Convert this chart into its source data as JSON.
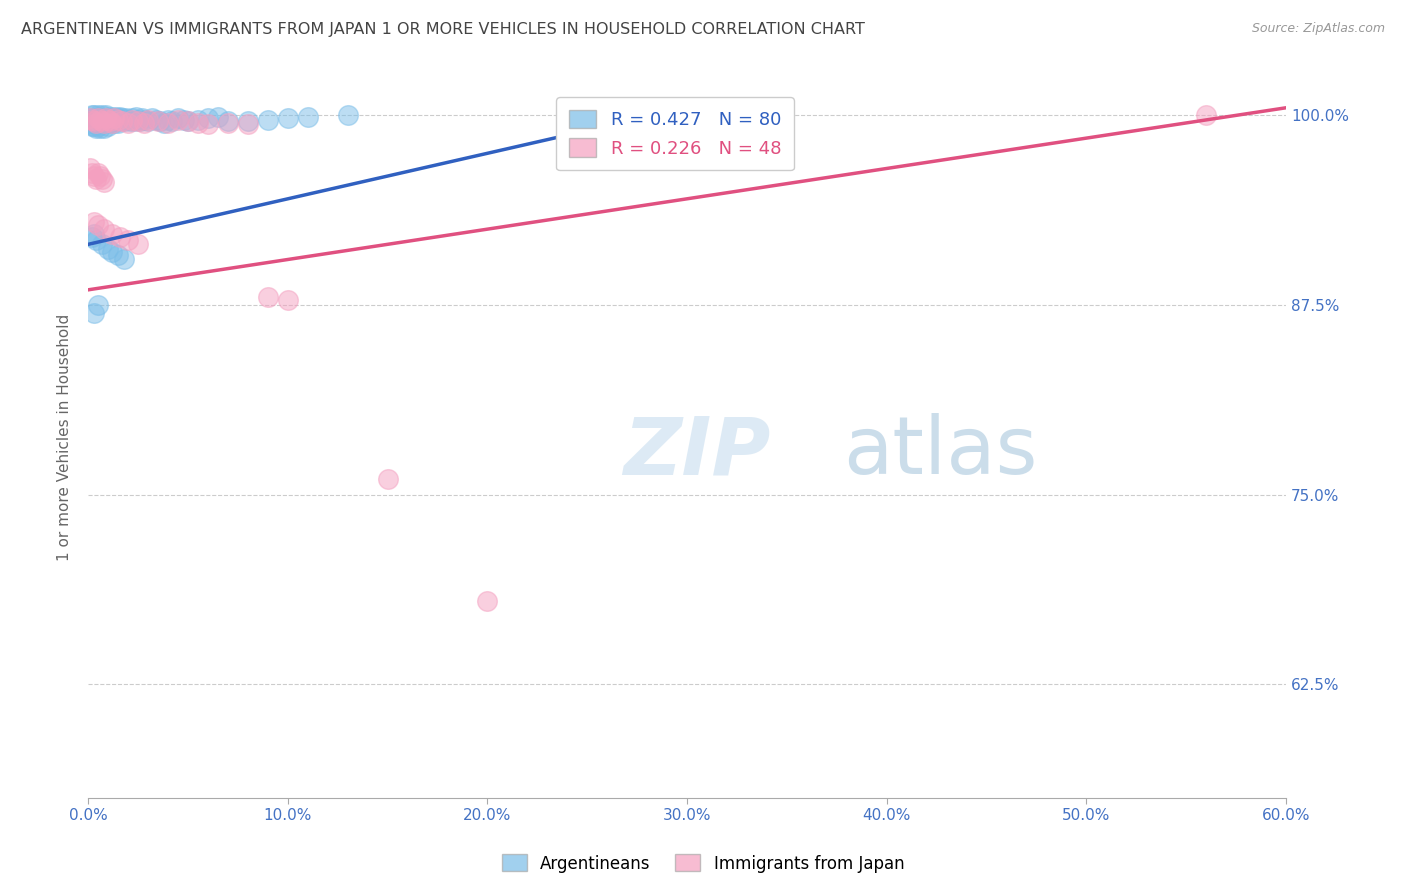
{
  "title": "ARGENTINEAN VS IMMIGRANTS FROM JAPAN 1 OR MORE VEHICLES IN HOUSEHOLD CORRELATION CHART",
  "source": "Source: ZipAtlas.com",
  "ylabel": "1 or more Vehicles in Household",
  "xmin": 0.0,
  "xmax": 0.6,
  "ymin": 0.55,
  "ymax": 1.025,
  "xticks": [
    0.0,
    0.1,
    0.2,
    0.3,
    0.4,
    0.5,
    0.6
  ],
  "xticklabels": [
    "0.0%",
    "10.0%",
    "20.0%",
    "30.0%",
    "40.0%",
    "50.0%",
    "60.0%"
  ],
  "yticks": [
    0.625,
    0.75,
    0.875,
    1.0
  ],
  "yticklabels": [
    "62.5%",
    "75.0%",
    "87.5%",
    "100.0%"
  ],
  "legend_labels": [
    "Argentineans",
    "Immigrants from Japan"
  ],
  "R_blue": 0.427,
  "N_blue": 80,
  "R_pink": 0.226,
  "N_pink": 48,
  "blue_color": "#7abde8",
  "pink_color": "#f4a0c0",
  "blue_line_color": "#3060c0",
  "pink_line_color": "#e05080",
  "title_color": "#444444",
  "axis_label_color": "#666666",
  "tick_color": "#4472c4",
  "blue_line_x0": 0.0,
  "blue_line_y0": 0.915,
  "blue_line_x1": 0.3,
  "blue_line_y1": 1.005,
  "pink_line_x0": 0.0,
  "pink_line_y0": 0.885,
  "pink_line_x1": 0.6,
  "pink_line_y1": 1.005,
  "blue_x": [
    0.001,
    0.001,
    0.002,
    0.002,
    0.002,
    0.003,
    0.003,
    0.003,
    0.004,
    0.004,
    0.004,
    0.005,
    0.005,
    0.005,
    0.006,
    0.006,
    0.006,
    0.007,
    0.007,
    0.008,
    0.008,
    0.008,
    0.009,
    0.009,
    0.01,
    0.01,
    0.01,
    0.011,
    0.011,
    0.012,
    0.012,
    0.013,
    0.013,
    0.014,
    0.014,
    0.015,
    0.015,
    0.016,
    0.016,
    0.017,
    0.018,
    0.019,
    0.02,
    0.021,
    0.022,
    0.023,
    0.024,
    0.025,
    0.026,
    0.027,
    0.028,
    0.03,
    0.032,
    0.034,
    0.036,
    0.038,
    0.04,
    0.042,
    0.045,
    0.048,
    0.05,
    0.055,
    0.06,
    0.065,
    0.07,
    0.08,
    0.09,
    0.1,
    0.11,
    0.13,
    0.002,
    0.003,
    0.004,
    0.007,
    0.01,
    0.012,
    0.015,
    0.018,
    0.003,
    0.005
  ],
  "blue_y": [
    0.998,
    0.995,
    1.0,
    0.997,
    0.993,
    1.0,
    0.997,
    0.993,
    0.998,
    0.995,
    0.992,
    1.0,
    0.997,
    0.993,
    0.998,
    0.995,
    0.992,
    1.0,
    0.997,
    0.998,
    0.995,
    0.992,
    1.0,
    0.996,
    0.999,
    0.996,
    0.993,
    0.998,
    0.995,
    0.999,
    0.996,
    0.998,
    0.995,
    0.999,
    0.996,
    0.998,
    0.995,
    0.999,
    0.997,
    0.998,
    0.996,
    0.998,
    0.997,
    0.996,
    0.998,
    0.996,
    0.999,
    0.997,
    0.996,
    0.998,
    0.997,
    0.996,
    0.998,
    0.997,
    0.996,
    0.995,
    0.997,
    0.996,
    0.998,
    0.997,
    0.996,
    0.997,
    0.998,
    0.999,
    0.996,
    0.996,
    0.997,
    0.998,
    0.999,
    1.0,
    0.92,
    0.922,
    0.918,
    0.915,
    0.912,
    0.91,
    0.908,
    0.905,
    0.87,
    0.875
  ],
  "pink_x": [
    0.001,
    0.002,
    0.003,
    0.004,
    0.005,
    0.006,
    0.007,
    0.008,
    0.009,
    0.01,
    0.011,
    0.012,
    0.013,
    0.015,
    0.017,
    0.02,
    0.022,
    0.025,
    0.028,
    0.03,
    0.001,
    0.002,
    0.003,
    0.004,
    0.005,
    0.006,
    0.007,
    0.008,
    0.035,
    0.04,
    0.045,
    0.05,
    0.055,
    0.06,
    0.07,
    0.08,
    0.003,
    0.005,
    0.008,
    0.012,
    0.016,
    0.02,
    0.025,
    0.09,
    0.1,
    0.15,
    0.2,
    0.56
  ],
  "pink_y": [
    0.998,
    0.997,
    0.996,
    0.995,
    0.998,
    0.997,
    0.996,
    0.995,
    0.998,
    0.997,
    0.996,
    0.995,
    0.998,
    0.997,
    0.996,
    0.995,
    0.997,
    0.996,
    0.995,
    0.997,
    0.965,
    0.962,
    0.96,
    0.958,
    0.962,
    0.96,
    0.958,
    0.956,
    0.996,
    0.995,
    0.997,
    0.996,
    0.995,
    0.994,
    0.995,
    0.994,
    0.93,
    0.928,
    0.925,
    0.922,
    0.92,
    0.918,
    0.915,
    0.88,
    0.878,
    0.76,
    0.68,
    1.0
  ]
}
